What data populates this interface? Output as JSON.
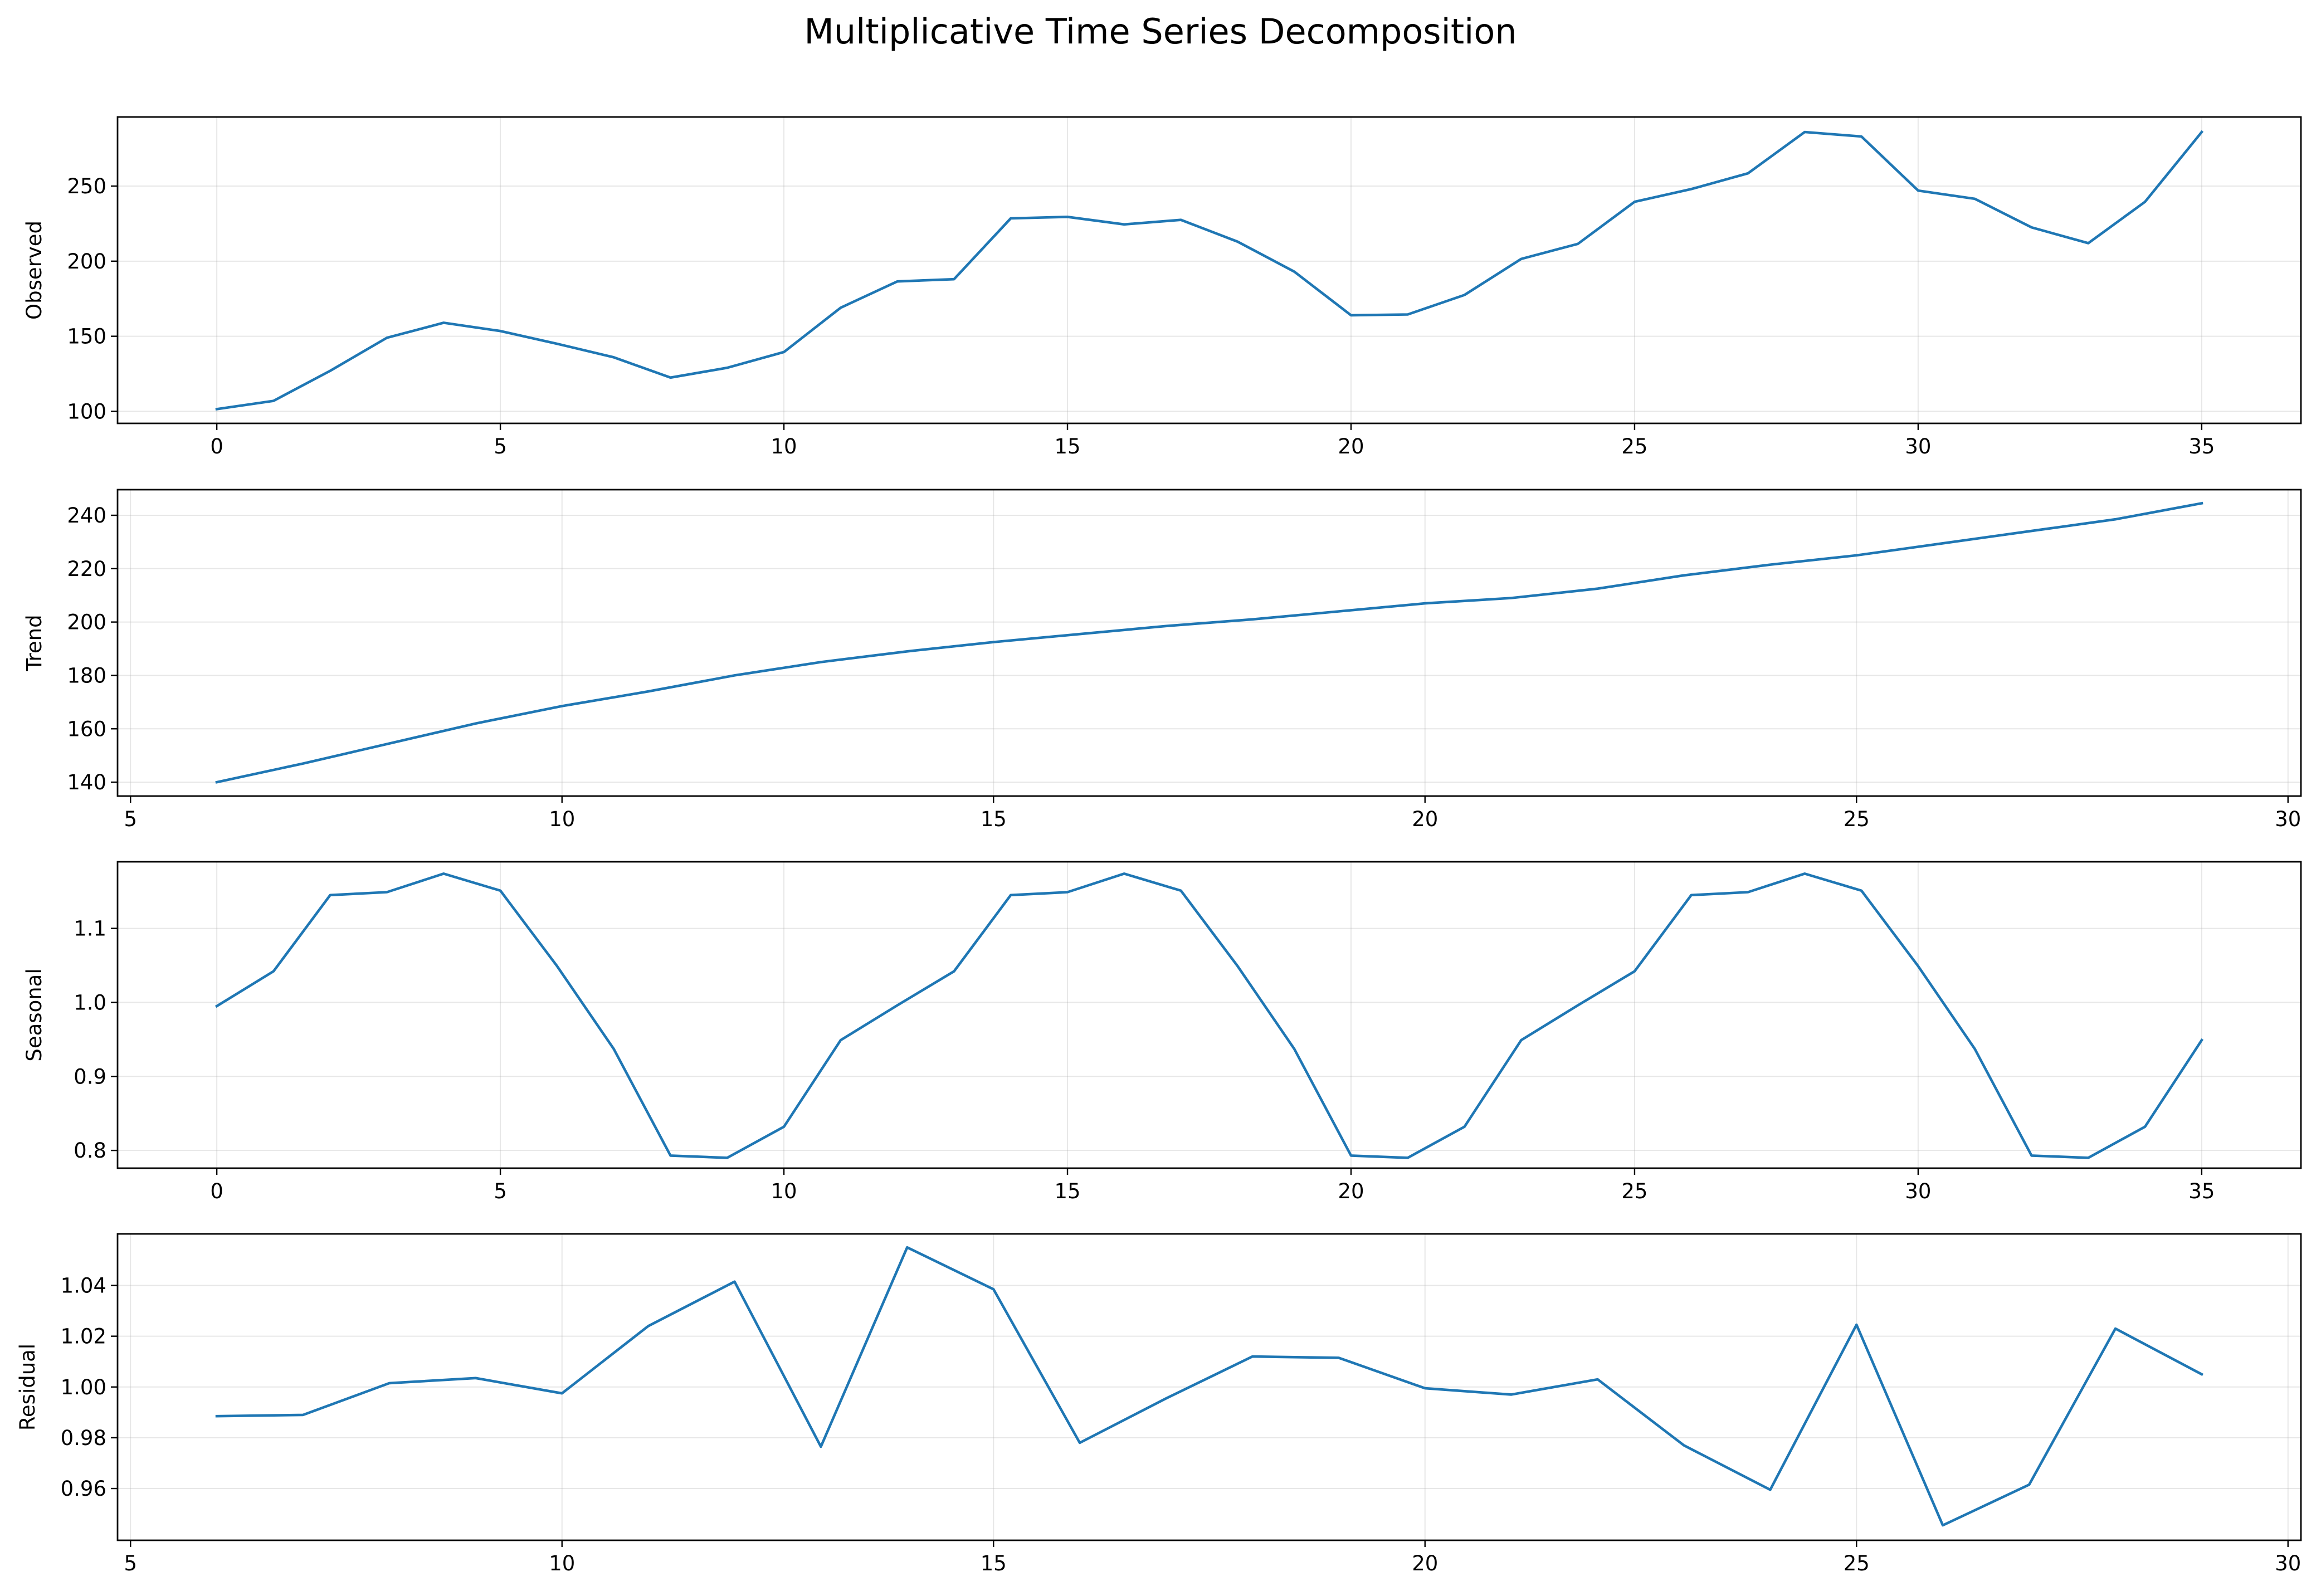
{
  "figure": {
    "title": "Multiplicative Time Series Decomposition"
  },
  "colors": {
    "series": "#1f77b4",
    "grid": "#b0b0b0",
    "axes": "#000000",
    "background": "#ffffff"
  },
  "chart_data": [
    {
      "type": "line",
      "title": "",
      "xlabel": "",
      "ylabel": "Observed",
      "grid": true,
      "xlim": [
        -1.75,
        36.75
      ],
      "ylim": [
        92,
        296
      ],
      "xticks": [
        0,
        5,
        10,
        15,
        20,
        25,
        30,
        35
      ],
      "yticks": [
        100,
        150,
        200,
        250
      ],
      "ytick_labels": [
        "100",
        "150",
        "200",
        "250"
      ],
      "series": [
        {
          "x": [
            0,
            1,
            2,
            3,
            4,
            5,
            6,
            7,
            8,
            9,
            10,
            11,
            12,
            13,
            14,
            15,
            16,
            17,
            18,
            19,
            20,
            21,
            22,
            23,
            24,
            25,
            26,
            27,
            28,
            29,
            30,
            31,
            32,
            33,
            34,
            35
          ],
          "y": [
            101.5,
            107,
            127,
            149,
            159,
            153.5,
            145,
            136,
            122.5,
            129,
            139.5,
            169,
            186.5,
            188,
            228.5,
            229.5,
            224.5,
            227.5,
            213,
            193,
            164,
            164.5,
            177.5,
            201.5,
            211.5,
            239.5,
            248,
            258.5,
            286,
            283,
            247,
            241.5,
            222.5,
            212,
            239.5,
            286
          ]
        }
      ]
    },
    {
      "type": "line",
      "title": "",
      "xlabel": "",
      "ylabel": "Trend",
      "grid": true,
      "xlim": [
        4.85,
        30.15
      ],
      "ylim": [
        134.8,
        249.6
      ],
      "xticks": [
        5,
        10,
        15,
        20,
        25,
        30
      ],
      "yticks": [
        140,
        160,
        180,
        200,
        220,
        240
      ],
      "ytick_labels": [
        "140",
        "160",
        "180",
        "200",
        "220",
        "240"
      ],
      "series": [
        {
          "x": [
            6,
            7,
            8,
            9,
            10,
            11,
            12,
            13,
            14,
            15,
            16,
            17,
            18,
            19,
            20,
            21,
            22,
            23,
            24,
            25,
            26,
            27,
            28,
            29
          ],
          "y": [
            140,
            147,
            154.5,
            162,
            168.5,
            174,
            180,
            185,
            189,
            192.5,
            195.5,
            198.5,
            201,
            204,
            207,
            209,
            212.5,
            217.5,
            221.5,
            225,
            229.5,
            234,
            238.5,
            244.5
          ]
        }
      ]
    },
    {
      "type": "line",
      "title": "",
      "xlabel": "",
      "ylabel": "Seasonal",
      "grid": true,
      "xlim": [
        -1.75,
        36.75
      ],
      "ylim": [
        0.776,
        1.19
      ],
      "xticks": [
        0,
        5,
        10,
        15,
        20,
        25,
        30,
        35
      ],
      "yticks": [
        0.8,
        0.9,
        1.0,
        1.1
      ],
      "ytick_labels": [
        "0.8",
        "0.9",
        "1.0",
        "1.1"
      ],
      "series": [
        {
          "x": [
            0,
            1,
            2,
            3,
            4,
            5,
            6,
            7,
            8,
            9,
            10,
            11,
            12,
            13,
            14,
            15,
            16,
            17,
            18,
            19,
            20,
            21,
            22,
            23,
            24,
            25,
            26,
            27,
            28,
            29,
            30,
            31,
            32,
            33,
            34,
            35
          ],
          "y": [
            0.995,
            1.042,
            1.145,
            1.149,
            1.174,
            1.151,
            1.049,
            0.937,
            0.793,
            0.79,
            0.832,
            0.949,
            0.996,
            1.042,
            1.145,
            1.149,
            1.174,
            1.151,
            1.049,
            0.937,
            0.793,
            0.79,
            0.832,
            0.949,
            0.996,
            1.042,
            1.145,
            1.149,
            1.174,
            1.151,
            1.049,
            0.937,
            0.793,
            0.79,
            0.832,
            0.949
          ]
        }
      ]
    },
    {
      "type": "line",
      "title": "",
      "xlabel": "",
      "ylabel": "Residual",
      "grid": true,
      "xlim": [
        4.85,
        30.15
      ],
      "ylim": [
        0.9396,
        1.0603
      ],
      "xticks": [
        5,
        10,
        15,
        20,
        25,
        30
      ],
      "yticks": [
        0.96,
        0.98,
        1.0,
        1.02,
        1.04
      ],
      "ytick_labels": [
        "0.96",
        "0.98",
        "1.00",
        "1.02",
        "1.04"
      ],
      "series": [
        {
          "x": [
            6,
            7,
            8,
            9,
            10,
            11,
            12,
            13,
            14,
            15,
            16,
            17,
            18,
            19,
            20,
            21,
            22,
            23,
            24,
            25,
            26,
            27,
            28,
            29
          ],
          "y": [
            0.9885,
            0.989,
            1.0015,
            1.0035,
            0.9975,
            1.024,
            1.0415,
            0.9765,
            1.055,
            1.0385,
            0.978,
            0.9955,
            1.012,
            1.0115,
            0.9995,
            0.997,
            1.003,
            0.977,
            0.9595,
            1.0245,
            0.9455,
            0.9615,
            1.023,
            1.005
          ]
        }
      ]
    }
  ]
}
